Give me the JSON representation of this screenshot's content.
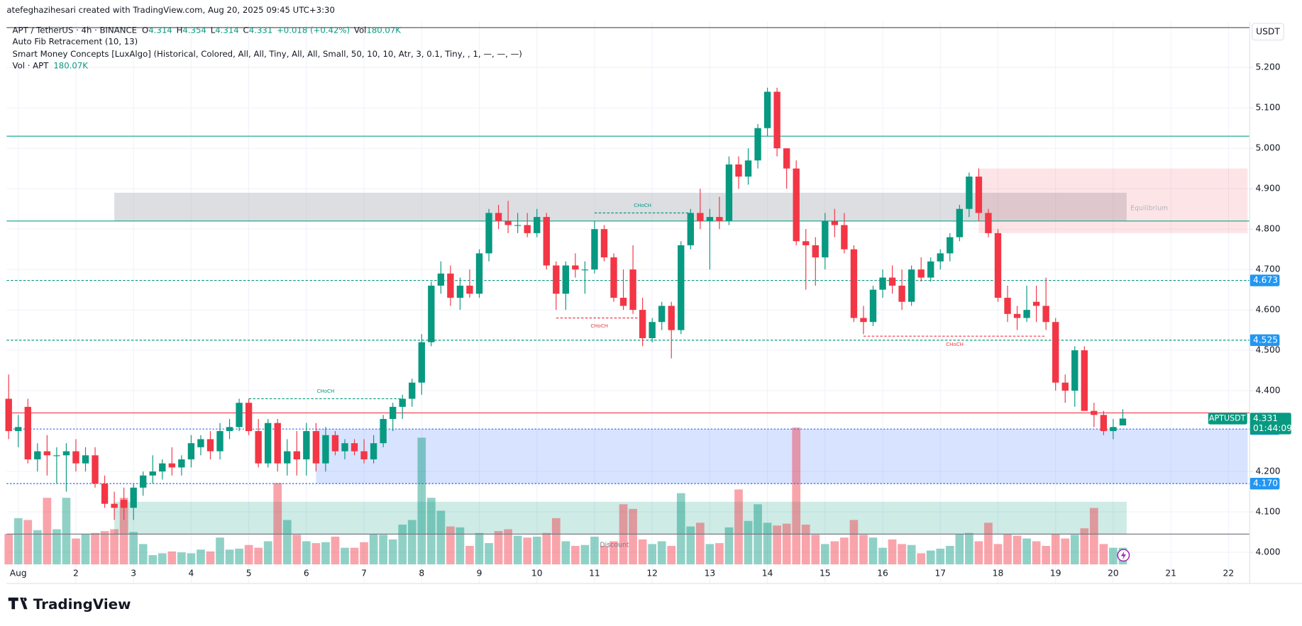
{
  "chart_data": {
    "type": "candlestick",
    "credit": "atefeghazihesari created with TradingView.com, Aug 20, 2025 09:45 UTC+3:30",
    "symbol": "APT / TetherUS · 4h · BINANCE",
    "ohlc_keys": [
      "O",
      "H",
      "L",
      "C"
    ],
    "change": "+0.018 (+0.42%)",
    "vol_key": "Vol",
    "vol_label": "180.07K",
    "indicators": [
      "Auto Fib Retracement (10, 13)",
      "Smart Money Concepts [LuxAlgo] (Historical, Colored, All, All, Tiny, All, All, Small, 50, 10, 10, Atr, 3, 0.1, Tiny, , 1, —, —, —)"
    ],
    "vol_study": "Vol · APT",
    "currency": "USDT",
    "logo": "TradingView",
    "up_color": "#089981",
    "down_color": "#f23645",
    "ylim": [
      3.97,
      5.305
    ],
    "yticks": [
      {
        "value": 4,
        "label": "4.000"
      },
      {
        "value": 4.1,
        "label": "4.100"
      },
      {
        "value": 4.2,
        "label": "4.200"
      },
      {
        "value": 4.4,
        "label": "4.400"
      },
      {
        "value": 4.5,
        "label": "4.500"
      },
      {
        "value": 4.6,
        "label": "4.600"
      },
      {
        "value": 4.7,
        "label": "4.700"
      },
      {
        "value": 4.8,
        "label": "4.800"
      },
      {
        "value": 4.9,
        "label": "4.900"
      },
      {
        "value": 5,
        "label": "5.000"
      },
      {
        "value": 5.1,
        "label": "5.100"
      },
      {
        "value": 5.2,
        "label": "5.200"
      }
    ],
    "grid": true,
    "xtick_labels": [
      "Aug",
      "2",
      "3",
      "4",
      "5",
      "6",
      "7",
      "8",
      "9",
      "10",
      "11",
      "12",
      "13",
      "14",
      "15",
      "16",
      "17",
      "18",
      "19",
      "20",
      "21",
      "22"
    ],
    "ohlc": [
      [
        4.38,
        4.44,
        4.28,
        4.3
      ],
      [
        4.3,
        4.34,
        4.26,
        4.31
      ],
      [
        4.36,
        4.38,
        4.22,
        4.23
      ],
      [
        4.23,
        4.27,
        4.2,
        4.25
      ],
      [
        4.25,
        4.29,
        4.19,
        4.24
      ],
      [
        4.24,
        4.26,
        4.17,
        4.24
      ],
      [
        4.24,
        4.27,
        4.15,
        4.25
      ],
      [
        4.25,
        4.28,
        4.2,
        4.22
      ],
      [
        4.22,
        4.26,
        4.2,
        4.24
      ],
      [
        4.24,
        4.26,
        4.16,
        4.17
      ],
      [
        4.17,
        4.19,
        4.11,
        4.12
      ],
      [
        4.12,
        4.15,
        4.08,
        4.11
      ],
      [
        4.13,
        4.16,
        4.08,
        4.11
      ],
      [
        4.11,
        4.17,
        4.08,
        4.16
      ],
      [
        4.16,
        4.2,
        4.14,
        4.19
      ],
      [
        4.19,
        4.24,
        4.17,
        4.2
      ],
      [
        4.2,
        4.23,
        4.18,
        4.22
      ],
      [
        4.22,
        4.26,
        4.19,
        4.21
      ],
      [
        4.21,
        4.24,
        4.19,
        4.23
      ],
      [
        4.23,
        4.29,
        4.21,
        4.27
      ],
      [
        4.26,
        4.29,
        4.24,
        4.28
      ],
      [
        4.28,
        4.3,
        4.23,
        4.25
      ],
      [
        4.25,
        4.32,
        4.23,
        4.3
      ],
      [
        4.3,
        4.33,
        4.28,
        4.31
      ],
      [
        4.31,
        4.38,
        4.3,
        4.37
      ],
      [
        4.37,
        4.38,
        4.29,
        4.3
      ],
      [
        4.3,
        4.33,
        4.21,
        4.22
      ],
      [
        4.22,
        4.33,
        4.21,
        4.32
      ],
      [
        4.32,
        4.33,
        4.2,
        4.22
      ],
      [
        4.22,
        4.28,
        4.19,
        4.25
      ],
      [
        4.25,
        4.3,
        4.19,
        4.23
      ],
      [
        4.23,
        4.32,
        4.19,
        4.3
      ],
      [
        4.3,
        4.32,
        4.2,
        4.22
      ],
      [
        4.22,
        4.31,
        4.2,
        4.29
      ],
      [
        4.29,
        4.3,
        4.24,
        4.25
      ],
      [
        4.25,
        4.28,
        4.23,
        4.27
      ],
      [
        4.27,
        4.28,
        4.24,
        4.25
      ],
      [
        4.25,
        4.28,
        4.22,
        4.23
      ],
      [
        4.23,
        4.29,
        4.22,
        4.27
      ],
      [
        4.27,
        4.34,
        4.26,
        4.33
      ],
      [
        4.33,
        4.37,
        4.3,
        4.36
      ],
      [
        4.36,
        4.39,
        4.33,
        4.38
      ],
      [
        4.38,
        4.43,
        4.36,
        4.42
      ],
      [
        4.42,
        4.54,
        4.39,
        4.52
      ],
      [
        4.52,
        4.67,
        4.51,
        4.66
      ],
      [
        4.66,
        4.72,
        4.64,
        4.69
      ],
      [
        4.69,
        4.71,
        4.61,
        4.63
      ],
      [
        4.63,
        4.68,
        4.6,
        4.66
      ],
      [
        4.66,
        4.7,
        4.63,
        4.64
      ],
      [
        4.64,
        4.75,
        4.63,
        4.74
      ],
      [
        4.74,
        4.85,
        4.72,
        4.84
      ],
      [
        4.84,
        4.86,
        4.8,
        4.82
      ],
      [
        4.82,
        4.87,
        4.79,
        4.81
      ],
      [
        4.81,
        4.84,
        4.79,
        4.81
      ],
      [
        4.81,
        4.84,
        4.78,
        4.79
      ],
      [
        4.79,
        4.85,
        4.78,
        4.83
      ],
      [
        4.83,
        4.84,
        4.7,
        4.71
      ],
      [
        4.71,
        4.72,
        4.6,
        4.64
      ],
      [
        4.64,
        4.72,
        4.6,
        4.71
      ],
      [
        4.71,
        4.74,
        4.68,
        4.7
      ],
      [
        4.7,
        4.72,
        4.64,
        4.7
      ],
      [
        4.7,
        4.82,
        4.69,
        4.8
      ],
      [
        4.8,
        4.81,
        4.72,
        4.73
      ],
      [
        4.73,
        4.74,
        4.62,
        4.63
      ],
      [
        4.63,
        4.7,
        4.6,
        4.61
      ],
      [
        4.7,
        4.76,
        4.59,
        4.6
      ],
      [
        4.6,
        4.63,
        4.51,
        4.53
      ],
      [
        4.53,
        4.58,
        4.52,
        4.57
      ],
      [
        4.57,
        4.62,
        4.55,
        4.61
      ],
      [
        4.61,
        4.62,
        4.48,
        4.55
      ],
      [
        4.55,
        4.77,
        4.54,
        4.76
      ],
      [
        4.76,
        4.85,
        4.75,
        4.84
      ],
      [
        4.84,
        4.9,
        4.8,
        4.82
      ],
      [
        4.82,
        4.85,
        4.7,
        4.83
      ],
      [
        4.83,
        4.88,
        4.8,
        4.82
      ],
      [
        4.82,
        4.98,
        4.81,
        4.96
      ],
      [
        4.96,
        4.98,
        4.9,
        4.93
      ],
      [
        4.93,
        5.0,
        4.91,
        4.97
      ],
      [
        4.97,
        5.06,
        4.95,
        5.05
      ],
      [
        5.05,
        5.15,
        5.03,
        5.14
      ],
      [
        5.14,
        5.15,
        4.98,
        5.0
      ],
      [
        5.0,
        5.0,
        4.9,
        4.95
      ],
      [
        4.95,
        4.97,
        4.76,
        4.77
      ],
      [
        4.77,
        4.8,
        4.65,
        4.76
      ],
      [
        4.76,
        4.78,
        4.66,
        4.73
      ],
      [
        4.73,
        4.84,
        4.7,
        4.82
      ],
      [
        4.82,
        4.85,
        4.78,
        4.81
      ],
      [
        4.81,
        4.84,
        4.74,
        4.75
      ],
      [
        4.75,
        4.76,
        4.57,
        4.58
      ],
      [
        4.58,
        4.61,
        4.54,
        4.57
      ],
      [
        4.57,
        4.66,
        4.56,
        4.65
      ],
      [
        4.65,
        4.7,
        4.63,
        4.68
      ],
      [
        4.68,
        4.71,
        4.64,
        4.66
      ],
      [
        4.66,
        4.7,
        4.6,
        4.62
      ],
      [
        4.62,
        4.71,
        4.61,
        4.7
      ],
      [
        4.7,
        4.73,
        4.67,
        4.68
      ],
      [
        4.68,
        4.73,
        4.67,
        4.72
      ],
      [
        4.72,
        4.75,
        4.7,
        4.74
      ],
      [
        4.74,
        4.79,
        4.72,
        4.78
      ],
      [
        4.78,
        4.86,
        4.77,
        4.85
      ],
      [
        4.85,
        4.94,
        4.83,
        4.93
      ],
      [
        4.93,
        4.95,
        4.82,
        4.84
      ],
      [
        4.84,
        4.85,
        4.78,
        4.79
      ],
      [
        4.79,
        4.8,
        4.62,
        4.63
      ],
      [
        4.63,
        4.66,
        4.57,
        4.59
      ],
      [
        4.59,
        4.61,
        4.55,
        4.58
      ],
      [
        4.58,
        4.66,
        4.57,
        4.6
      ],
      [
        4.62,
        4.66,
        4.57,
        4.61
      ],
      [
        4.61,
        4.68,
        4.55,
        4.57
      ],
      [
        4.57,
        4.58,
        4.4,
        4.42
      ],
      [
        4.42,
        4.44,
        4.37,
        4.4
      ],
      [
        4.4,
        4.51,
        4.36,
        4.5
      ],
      [
        4.5,
        4.51,
        4.35,
        4.35
      ],
      [
        4.35,
        4.37,
        4.31,
        4.34
      ],
      [
        4.34,
        4.35,
        4.29,
        4.3
      ],
      [
        4.3,
        4.33,
        4.28,
        4.31
      ],
      [
        4.314,
        4.354,
        4.314,
        4.331
      ]
    ],
    "volume": [
      330,
      500,
      480,
      370,
      720,
      380,
      720,
      280,
      330,
      340,
      360,
      380,
      720,
      350,
      220,
      100,
      120,
      140,
      130,
      120,
      160,
      140,
      290,
      160,
      170,
      210,
      180,
      250,
      880,
      480,
      320,
      250,
      230,
      240,
      300,
      180,
      180,
      240,
      330,
      320,
      270,
      430,
      480,
      1370,
      720,
      580,
      410,
      400,
      200,
      340,
      230,
      360,
      380,
      310,
      290,
      300,
      340,
      500,
      250,
      200,
      210,
      300,
      200,
      250,
      650,
      600,
      270,
      220,
      250,
      200,
      770,
      410,
      450,
      220,
      230,
      400,
      810,
      470,
      650,
      450,
      420,
      440,
      1480,
      430,
      320,
      220,
      250,
      290,
      480,
      320,
      290,
      180,
      270,
      220,
      210,
      120,
      150,
      170,
      200,
      330,
      340,
      250,
      450,
      220,
      330,
      310,
      280,
      250,
      200,
      330,
      280,
      320,
      390,
      610,
      220,
      180,
      180.07
    ],
    "zones": [
      {
        "low": 4.82,
        "high": 4.89,
        "start": 11,
        "end": 116.4,
        "color": "rgba(178,181,190,0.45)"
      },
      {
        "low": 4.79,
        "high": 4.95,
        "start": 101,
        "end": 129,
        "color": "rgba(242,54,69,0.13)"
      },
      {
        "low": 4.17,
        "high": 4.305,
        "start": 32,
        "end": 129,
        "color": "rgba(41,98,255,0.18)"
      },
      {
        "low": 4.045,
        "high": 4.125,
        "start": 11,
        "end": 116.4,
        "color": "rgba(8,153,129,0.2)"
      }
    ],
    "levels": [
      {
        "value": 5.03,
        "color": "#22ab94",
        "style": "solid"
      },
      {
        "value": 4.82,
        "color": "#22ab94",
        "style": "solid"
      },
      {
        "value": 4.673,
        "color": "#089981",
        "style": "dashed",
        "badge": "#2196f3"
      },
      {
        "value": 4.525,
        "color": "#089981",
        "style": "dashed",
        "badge": "#2196f3"
      },
      {
        "value": 4.345,
        "color": "#f23645",
        "style": "solid"
      },
      {
        "value": 4.305,
        "color": "#2962ff",
        "style": "dotted",
        "badge": "#2196f3"
      },
      {
        "value": 4.17,
        "label": "4.170",
        "color": "#2962ff",
        "style": "dotted",
        "badge": "#2196f3"
      },
      {
        "value": 4.045,
        "color": "#787b86",
        "style": "solid"
      }
    ],
    "choch": [
      {
        "label": "CHoCH",
        "price": 4.38,
        "start": 25,
        "end": 41,
        "color": "#089981"
      },
      {
        "label": "CHoCH",
        "price": 4.58,
        "start": 57,
        "end": 66,
        "color": "#f23645"
      },
      {
        "label": "CHoCH",
        "price": 4.84,
        "start": 61,
        "end": 71,
        "color": "#089981"
      },
      {
        "label": "CHoCH",
        "price": 4.535,
        "start": 89,
        "end": 108,
        "color": "#f23645"
      }
    ],
    "annotations": [
      "Equilibrium",
      "Discount"
    ],
    "price_badge": {
      "symbol": "APTUSDT",
      "countdown": "01:44:09"
    }
  }
}
